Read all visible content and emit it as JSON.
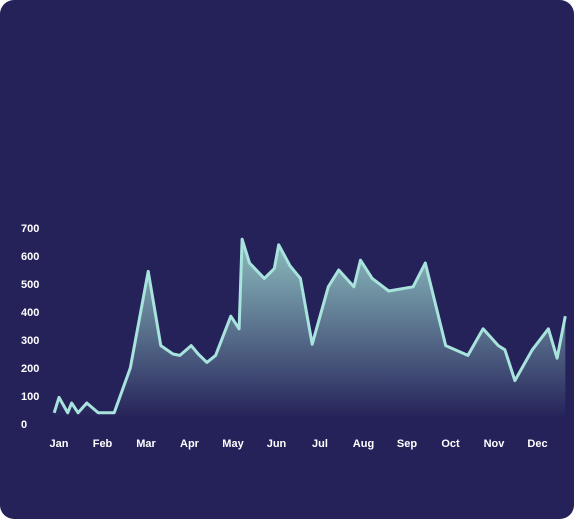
{
  "colors": {
    "background": "#252259",
    "line": "#a8e3de",
    "fill_top": "#92c6c4",
    "fill_bottom": "#252259",
    "tick_text": "#ffffff"
  },
  "chart_data": {
    "type": "area",
    "title": "",
    "xlabel": "",
    "ylabel": "",
    "grid": false,
    "ylim": [
      0,
      700
    ],
    "y_ticks": [
      "0",
      "100",
      "200",
      "300",
      "400",
      "500",
      "600",
      "700"
    ],
    "x_ticks": [
      "Jan",
      "Feb",
      "Mar",
      "Apr",
      "May",
      "Jun",
      "Jul",
      "Aug",
      "Sep",
      "Oct",
      "Nov",
      "Dec"
    ],
    "x_tick_positions": [
      0,
      1,
      2,
      3,
      4,
      5,
      6,
      7,
      8,
      9,
      10,
      11
    ],
    "series": [
      {
        "x": [
          -0.11,
          0.0,
          0.2,
          0.29,
          0.44,
          0.64,
          0.9,
          1.27,
          1.64,
          2.05,
          2.34,
          2.62,
          2.78,
          3.04,
          3.2,
          3.4,
          3.6,
          3.95,
          4.14,
          4.21,
          4.38,
          4.72,
          4.95,
          5.05,
          5.31,
          5.55,
          5.82,
          6.19,
          6.43,
          6.78,
          6.93,
          7.2,
          7.58,
          8.14,
          8.42,
          8.89,
          9.4,
          9.75,
          10.1,
          10.25,
          10.48,
          10.88,
          11.25,
          11.45,
          11.64
        ],
        "values": [
          40,
          95,
          40,
          75,
          40,
          75,
          40,
          40,
          200,
          545,
          280,
          250,
          245,
          280,
          250,
          220,
          245,
          385,
          340,
          660,
          575,
          520,
          555,
          640,
          565,
          520,
          285,
          490,
          550,
          490,
          585,
          520,
          475,
          490,
          575,
          280,
          245,
          340,
          280,
          265,
          155,
          265,
          340,
          235,
          385
        ]
      }
    ]
  }
}
